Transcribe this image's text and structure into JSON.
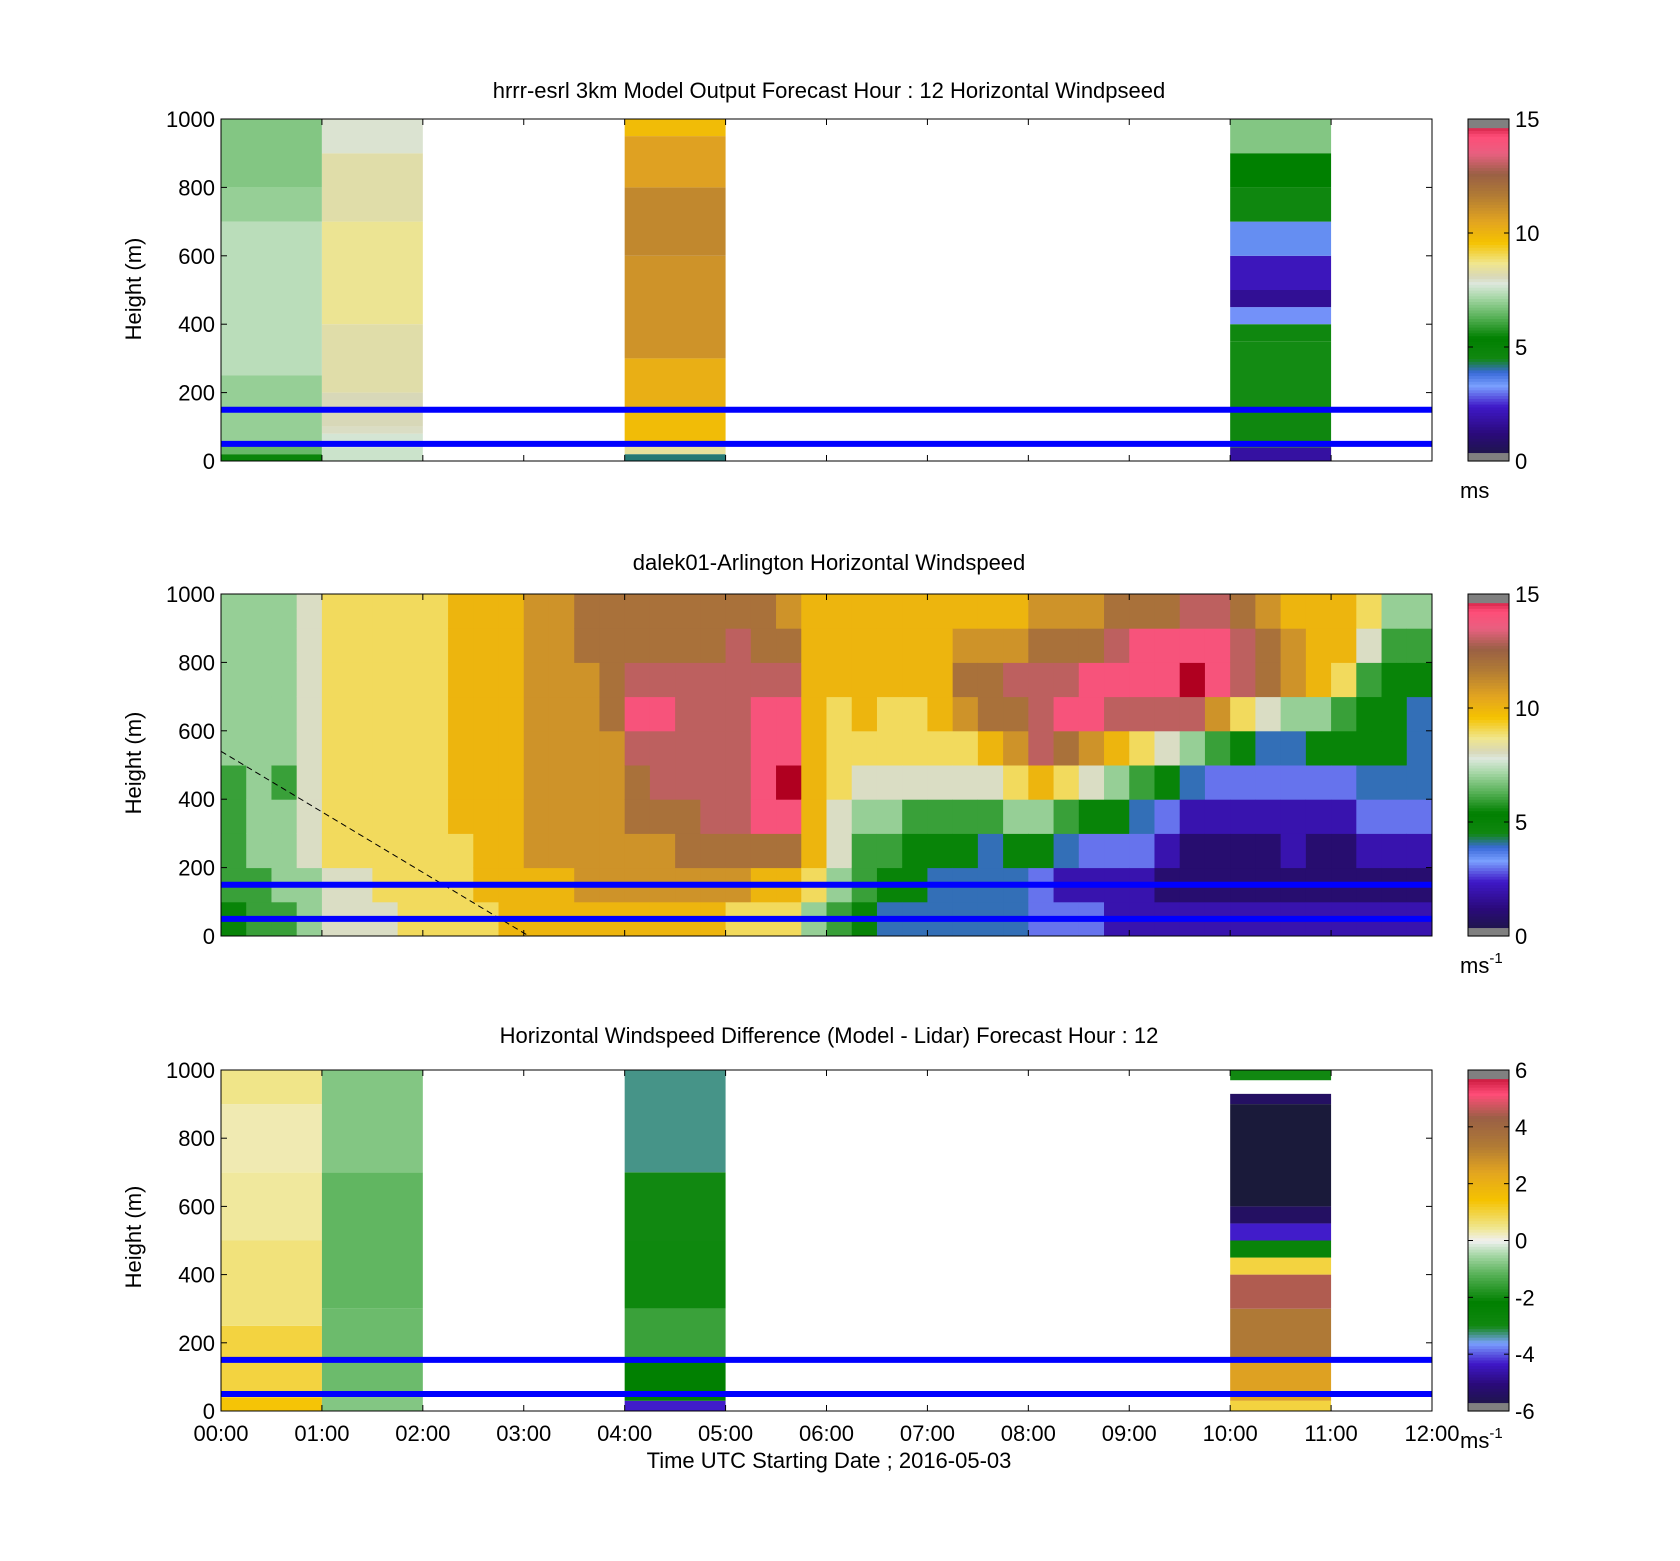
{
  "figure": {
    "xlabel": "Time UTC  Starting Date ; 2016-05-03",
    "time_ticks": [
      "00:00",
      "01:00",
      "02:00",
      "03:00",
      "04:00",
      "05:00",
      "06:00",
      "07:00",
      "08:00",
      "09:00",
      "10:00",
      "11:00",
      "12:00"
    ],
    "reference_line_color": "#0000ff",
    "reference_heights_m": [
      150,
      50
    ]
  },
  "colormaps": {
    "windspeed": [
      [
        0.0,
        "#1a1a3a"
      ],
      [
        0.08,
        "#2a0a7a"
      ],
      [
        0.16,
        "#3f18c8"
      ],
      [
        0.22,
        "#7aa0ff"
      ],
      [
        0.26,
        "#3a6ad8"
      ],
      [
        0.3,
        "#118811"
      ],
      [
        0.36,
        "#008000"
      ],
      [
        0.42,
        "#55b055"
      ],
      [
        0.48,
        "#a8d8a8"
      ],
      [
        0.52,
        "#dde8dd"
      ],
      [
        0.54,
        "#d8d8b8"
      ],
      [
        0.58,
        "#f0e68c"
      ],
      [
        0.64,
        "#f5c200"
      ],
      [
        0.7,
        "#e3a520"
      ],
      [
        0.78,
        "#b07a35"
      ],
      [
        0.84,
        "#9a6045"
      ],
      [
        0.9,
        "#e86080"
      ],
      [
        0.95,
        "#ff4d78"
      ],
      [
        1.0,
        "#b00020"
      ]
    ],
    "difference": [
      [
        0.0,
        "#1a1a3a"
      ],
      [
        0.08,
        "#2a0a7a"
      ],
      [
        0.14,
        "#3f18c8"
      ],
      [
        0.2,
        "#7aa0ff"
      ],
      [
        0.25,
        "#118811"
      ],
      [
        0.32,
        "#008000"
      ],
      [
        0.4,
        "#55b055"
      ],
      [
        0.46,
        "#a8d8a8"
      ],
      [
        0.5,
        "#f0f0f0"
      ],
      [
        0.54,
        "#f0e68c"
      ],
      [
        0.62,
        "#f5c200"
      ],
      [
        0.7,
        "#e3a520"
      ],
      [
        0.78,
        "#b07a35"
      ],
      [
        0.86,
        "#9a6045"
      ],
      [
        0.93,
        "#ff4d78"
      ],
      [
        1.0,
        "#b00020"
      ]
    ]
  },
  "chart_data": [
    {
      "type": "heatmap",
      "title": "hrrr-esrl 3km Model Output   Forecast Hour : 12 Horizontal Windpseed",
      "ylabel": "Height (m)",
      "ylim": [
        0,
        1000
      ],
      "yticks": [
        "0",
        "200",
        "400",
        "600",
        "800",
        "1000"
      ],
      "x_range_hours": [
        0,
        12
      ],
      "colorbar": {
        "min": 0,
        "max": 15,
        "ticks": [
          "0",
          "5",
          "10",
          "15"
        ],
        "label": "ms",
        "label_sup": "",
        "map": "windspeed"
      },
      "columns": [
        {
          "t0": 0,
          "t1": 1,
          "levels": [
            {
              "h0": 0,
              "h1": 20,
              "v": 5.5
            },
            {
              "h0": 20,
              "h1": 50,
              "v": 6.5
            },
            {
              "h0": 50,
              "h1": 250,
              "v": 7.0
            },
            {
              "h0": 250,
              "h1": 700,
              "v": 7.4
            },
            {
              "h0": 700,
              "h1": 800,
              "v": 7.0
            },
            {
              "h0": 800,
              "h1": 1000,
              "v": 6.8
            }
          ]
        },
        {
          "t0": 1,
          "t1": 2,
          "levels": [
            {
              "h0": 0,
              "h1": 40,
              "v": 7.6
            },
            {
              "h0": 40,
              "h1": 80,
              "v": 7.7
            },
            {
              "h0": 80,
              "h1": 100,
              "v": 8.0
            },
            {
              "h0": 100,
              "h1": 200,
              "v": 8.1
            },
            {
              "h0": 200,
              "h1": 400,
              "v": 8.3
            },
            {
              "h0": 400,
              "h1": 700,
              "v": 8.6
            },
            {
              "h0": 700,
              "h1": 900,
              "v": 8.3
            },
            {
              "h0": 900,
              "h1": 1000,
              "v": 7.9
            }
          ]
        },
        {
          "t0": 4,
          "t1": 5,
          "levels": [
            {
              "h0": 0,
              "h1": 20,
              "v": 4.2
            },
            {
              "h0": 20,
              "h1": 50,
              "v": 8.5
            },
            {
              "h0": 50,
              "h1": 150,
              "v": 9.8
            },
            {
              "h0": 150,
              "h1": 300,
              "v": 10.2
            },
            {
              "h0": 300,
              "h1": 600,
              "v": 11.0
            },
            {
              "h0": 600,
              "h1": 800,
              "v": 11.3
            },
            {
              "h0": 800,
              "h1": 950,
              "v": 10.6
            },
            {
              "h0": 950,
              "h1": 1000,
              "v": 9.8
            }
          ]
        },
        {
          "t0": 10,
          "t1": 11,
          "levels": [
            {
              "h0": 0,
              "h1": 40,
              "v": 1.8
            },
            {
              "h0": 40,
              "h1": 150,
              "v": 4.6
            },
            {
              "h0": 150,
              "h1": 350,
              "v": 5.6
            },
            {
              "h0": 350,
              "h1": 400,
              "v": 4.6
            },
            {
              "h0": 400,
              "h1": 450,
              "v": 3.2
            },
            {
              "h0": 450,
              "h1": 500,
              "v": 1.6
            },
            {
              "h0": 500,
              "h1": 600,
              "v": 2.2
            },
            {
              "h0": 600,
              "h1": 700,
              "v": 3.5
            },
            {
              "h0": 700,
              "h1": 800,
              "v": 4.6
            },
            {
              "h0": 800,
              "h1": 900,
              "v": 5.4
            },
            {
              "h0": 900,
              "h1": 1000,
              "v": 6.8
            }
          ]
        }
      ]
    },
    {
      "type": "heatmap",
      "title": "dalek01-Arlington  Horizontal Windspeed",
      "ylabel": "Height (m)",
      "ylim": [
        0,
        1000
      ],
      "yticks": [
        "0",
        "200",
        "400",
        "600",
        "800",
        "1000"
      ],
      "x_range_hours": [
        0,
        12
      ],
      "colorbar": {
        "min": 0,
        "max": 15,
        "ticks": [
          "0",
          "5",
          "10",
          "15"
        ],
        "label": "ms",
        "label_sup": "-1",
        "map": "windspeed"
      },
      "time_hours": [
        0.0,
        0.25,
        0.5,
        0.75,
        1.0,
        1.25,
        1.5,
        1.75,
        2.0,
        2.25,
        2.5,
        2.75,
        3.0,
        3.25,
        3.5,
        3.75,
        4.0,
        4.25,
        4.5,
        4.75,
        5.0,
        5.25,
        5.5,
        5.75,
        6.0,
        6.25,
        6.5,
        6.75,
        7.0,
        7.25,
        7.5,
        7.75,
        8.0,
        8.25,
        8.5,
        8.75,
        9.0,
        9.25,
        9.5,
        9.75,
        10.0,
        10.25,
        10.5,
        10.75,
        11.0,
        11.25,
        11.5,
        11.75
      ],
      "height_levels_m": [
        0,
        100,
        200,
        300,
        400,
        500,
        600,
        700,
        800,
        900,
        1000
      ],
      "profiles_ms": [
        [
          5,
          6,
          6,
          6,
          6,
          7,
          7,
          7,
          7,
          7
        ],
        [
          6,
          6,
          7,
          7,
          7,
          7,
          7,
          7,
          7,
          7
        ],
        [
          6,
          7,
          7,
          7,
          6,
          7,
          7,
          7,
          7,
          7
        ],
        [
          7,
          7,
          8,
          8,
          8,
          8,
          8,
          8,
          8,
          8
        ],
        [
          8,
          8,
          9,
          9,
          9,
          9,
          9,
          9,
          9,
          9
        ],
        [
          8,
          8,
          9,
          9,
          9,
          9,
          9,
          9,
          9,
          9
        ],
        [
          8,
          9,
          9,
          9,
          9,
          9,
          9,
          9,
          9,
          9
        ],
        [
          9,
          9,
          9,
          9,
          9,
          9,
          9,
          9,
          9,
          9
        ],
        [
          9,
          9,
          9,
          9,
          9,
          9,
          9,
          9,
          9,
          9
        ],
        [
          9,
          9,
          9,
          10,
          10,
          10,
          10,
          10,
          10,
          10
        ],
        [
          9,
          10,
          10,
          10,
          10,
          10,
          10,
          10,
          10,
          10
        ],
        [
          10,
          10,
          10,
          10,
          10,
          10,
          10,
          10,
          10,
          10
        ],
        [
          10,
          10,
          11,
          11,
          11,
          11,
          11,
          11,
          11,
          11
        ],
        [
          10,
          10,
          11,
          11,
          11,
          11,
          11,
          11,
          11,
          11
        ],
        [
          10,
          11,
          11,
          11,
          11,
          11,
          11,
          11,
          12,
          12
        ],
        [
          10,
          11,
          11,
          11,
          11,
          11,
          12,
          12,
          12,
          12
        ],
        [
          10,
          11,
          11,
          12,
          12,
          13,
          14,
          13,
          12,
          12
        ],
        [
          10,
          11,
          11,
          12,
          13,
          13,
          14,
          13,
          12,
          12
        ],
        [
          10,
          11,
          12,
          12,
          13,
          13,
          13,
          13,
          12,
          12
        ],
        [
          10,
          11,
          12,
          13,
          13,
          13,
          13,
          13,
          12,
          12
        ],
        [
          9,
          11,
          12,
          13,
          13,
          13,
          13,
          13,
          13,
          12
        ],
        [
          9,
          10,
          12,
          14,
          14,
          14,
          14,
          13,
          12,
          12
        ],
        [
          9,
          10,
          12,
          14,
          15,
          14,
          14,
          13,
          12,
          11
        ],
        [
          7,
          9,
          10,
          10,
          10,
          10,
          10,
          10,
          10,
          10
        ],
        [
          6,
          7,
          8,
          8,
          9,
          9,
          9,
          10,
          10,
          10
        ],
        [
          5,
          6,
          6,
          7,
          8,
          9,
          10,
          10,
          10,
          10
        ],
        [
          4,
          5,
          6,
          7,
          8,
          9,
          9,
          10,
          10,
          10
        ],
        [
          4,
          5,
          5,
          6,
          8,
          9,
          9,
          10,
          10,
          10
        ],
        [
          4,
          4,
          5,
          6,
          8,
          9,
          10,
          10,
          10,
          10
        ],
        [
          4,
          4,
          5,
          6,
          8,
          9,
          11,
          12,
          11,
          10
        ],
        [
          4,
          4,
          4,
          6,
          8,
          10,
          12,
          12,
          11,
          10
        ],
        [
          4,
          4,
          5,
          7,
          9,
          11,
          12,
          13,
          11,
          10
        ],
        [
          3,
          3,
          5,
          7,
          10,
          13,
          13,
          13,
          12,
          11
        ],
        [
          3,
          2,
          4,
          6,
          9,
          12,
          14,
          13,
          12,
          11
        ],
        [
          3,
          2,
          3,
          5,
          8,
          11,
          14,
          14,
          12,
          11
        ],
        [
          2,
          2,
          3,
          5,
          7,
          10,
          13,
          14,
          13,
          12
        ],
        [
          2,
          2,
          3,
          4,
          6,
          9,
          13,
          14,
          14,
          12
        ],
        [
          2,
          1,
          2,
          3,
          5,
          8,
          13,
          14,
          14,
          12
        ],
        [
          2,
          1,
          1,
          2,
          4,
          7,
          13,
          15,
          14,
          13
        ],
        [
          2,
          1,
          1,
          2,
          3,
          6,
          11,
          14,
          14,
          13
        ],
        [
          2,
          1,
          1,
          2,
          3,
          5,
          9,
          13,
          13,
          12
        ],
        [
          2,
          1,
          1,
          2,
          3,
          4,
          8,
          12,
          12,
          11
        ],
        [
          2,
          1,
          2,
          2,
          3,
          4,
          7,
          11,
          11,
          10
        ],
        [
          2,
          1,
          1,
          2,
          3,
          5,
          7,
          10,
          10,
          10
        ],
        [
          2,
          1,
          1,
          2,
          3,
          5,
          6,
          9,
          10,
          10
        ],
        [
          2,
          1,
          2,
          3,
          4,
          5,
          5,
          6,
          8,
          9
        ],
        [
          2,
          1,
          2,
          3,
          4,
          5,
          5,
          5,
          6,
          7
        ],
        [
          2,
          1,
          2,
          3,
          4,
          4,
          4,
          5,
          6,
          7
        ]
      ],
      "dashed_line": {
        "from": [
          0.0,
          540
        ],
        "to": [
          3.05,
          0
        ]
      }
    },
    {
      "type": "heatmap",
      "title": "Horizontal Windspeed Difference (Model - Lidar) Forecast Hour : 12",
      "ylabel": "Height (m)",
      "ylim": [
        0,
        1000
      ],
      "yticks": [
        "0",
        "200",
        "400",
        "600",
        "800",
        "1000"
      ],
      "x_range_hours": [
        0,
        12
      ],
      "colorbar": {
        "min": -6,
        "max": 6,
        "ticks": [
          "-6",
          "-4",
          "-2",
          "0",
          "2",
          "4",
          "6"
        ],
        "label": "ms",
        "label_sup": "-1",
        "map": "difference"
      },
      "columns": [
        {
          "t0": 0,
          "t1": 1,
          "levels": [
            {
              "h0": 0,
              "h1": 40,
              "v": 1.4
            },
            {
              "h0": 40,
              "h1": 250,
              "v": 1.0
            },
            {
              "h0": 250,
              "h1": 500,
              "v": 0.6
            },
            {
              "h0": 500,
              "h1": 700,
              "v": 0.4
            },
            {
              "h0": 700,
              "h1": 900,
              "v": 0.3
            },
            {
              "h0": 900,
              "h1": 1000,
              "v": 0.5
            }
          ]
        },
        {
          "t0": 1,
          "t1": 2,
          "levels": [
            {
              "h0": 0,
              "h1": 40,
              "v": -0.8
            },
            {
              "h0": 40,
              "h1": 300,
              "v": -1.0
            },
            {
              "h0": 300,
              "h1": 700,
              "v": -1.1
            },
            {
              "h0": 700,
              "h1": 1000,
              "v": -0.8
            }
          ]
        },
        {
          "t0": 4,
          "t1": 5,
          "levels": [
            {
              "h0": 0,
              "h1": 30,
              "v": -4.3
            },
            {
              "h0": 30,
              "h1": 150,
              "v": -2.2
            },
            {
              "h0": 150,
              "h1": 300,
              "v": -1.5
            },
            {
              "h0": 300,
              "h1": 500,
              "v": -2.0
            },
            {
              "h0": 500,
              "h1": 700,
              "v": -3.0
            },
            {
              "h0": 700,
              "h1": 1000,
              "v": -3.3
            }
          ]
        },
        {
          "t0": 10,
          "t1": 11,
          "levels": [
            {
              "h0": 0,
              "h1": 30,
              "v": 1.0
            },
            {
              "h0": 30,
              "h1": 150,
              "v": 2.5
            },
            {
              "h0": 150,
              "h1": 300,
              "v": 3.4
            },
            {
              "h0": 300,
              "h1": 400,
              "v": 4.5
            },
            {
              "h0": 400,
              "h1": 450,
              "v": 1.0
            },
            {
              "h0": 450,
              "h1": 500,
              "v": -2.6
            },
            {
              "h0": 500,
              "h1": 550,
              "v": -4.3
            },
            {
              "h0": 550,
              "h1": 600,
              "v": -5.4
            },
            {
              "h0": 600,
              "h1": 900,
              "v": -6.2
            },
            {
              "h0": 900,
              "h1": 930,
              "v": -5.4
            },
            {
              "h0": 970,
              "h1": 1000,
              "v": -3.0
            }
          ]
        }
      ]
    }
  ]
}
